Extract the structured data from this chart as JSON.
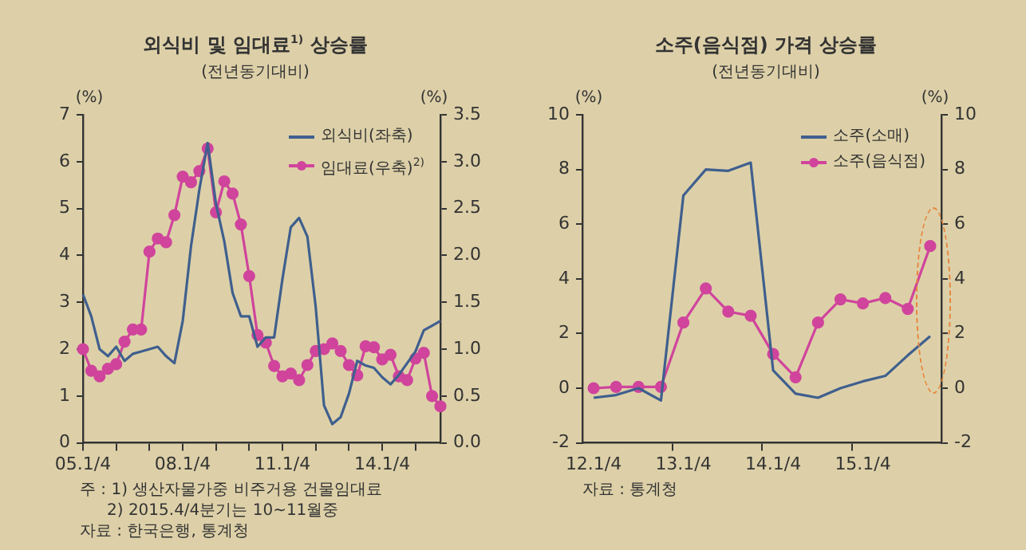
{
  "chart_data": [
    {
      "type": "line",
      "title": "외식비 및 임대료$^{1)}$ 상승률",
      "subtitle": "(전년동기대비)",
      "ylabel": "(%)",
      "y2label": "(%)",
      "categories": [
        "05.1/4",
        null,
        null,
        null,
        null,
        null,
        null,
        null,
        null,
        null,
        null,
        null,
        "08.1/4",
        null,
        null,
        null,
        null,
        null,
        null,
        null,
        null,
        null,
        null,
        null,
        "11.1/4",
        null,
        null,
        null,
        null,
        null,
        null,
        null,
        null,
        null,
        null,
        null,
        "14.1/4",
        null,
        null,
        null,
        null,
        null,
        null,
        null
      ],
      "series": [
        {
          "name": "외식비(좌축)",
          "color": "#3f5f8e",
          "marker": "none",
          "values": [
            3.17,
            2.7,
            2.0,
            1.85,
            2.05,
            1.75,
            1.9,
            1.95,
            2.0,
            2.05,
            1.85,
            1.7,
            2.6,
            4.2,
            5.4,
            6.4,
            5.1,
            4.3,
            3.2,
            2.7,
            2.7,
            2.05,
            2.25,
            2.25,
            3.5,
            4.6,
            4.8,
            4.4,
            2.9,
            0.8,
            0.4,
            0.55,
            1.05,
            1.75,
            1.65,
            1.6,
            1.4,
            1.25,
            1.45,
            1.7,
            1.95,
            2.4,
            2.5,
            2.6
          ]
        },
        {
          "name": "임대료(우축)$^{2)}$",
          "color": "#d0449c",
          "marker": "circle",
          "axis": "y2",
          "values": [
            1.0,
            0.77,
            0.71,
            0.79,
            0.84,
            1.08,
            1.21,
            1.21,
            2.04,
            2.18,
            2.14,
            2.43,
            2.84,
            2.78,
            2.9,
            3.14,
            2.46,
            2.79,
            2.66,
            2.33,
            1.78,
            1.15,
            1.07,
            0.82,
            0.71,
            0.74,
            0.67,
            0.83,
            0.98,
            1.0,
            1.06,
            0.98,
            0.83,
            0.72,
            1.03,
            1.02,
            0.89,
            0.94,
            0.71,
            0.67,
            0.9,
            0.96,
            0.5,
            0.39
          ]
        }
      ],
      "ylim": [
        0,
        7
      ],
      "yticks": [
        0,
        1,
        2,
        3,
        4,
        5,
        6,
        7
      ],
      "y2lim": [
        0,
        3.5
      ],
      "y2ticks": [
        {
          "value": 0,
          "label": "0.0"
        },
        {
          "value": 0.5,
          "label": "0.5"
        },
        {
          "value": 1,
          "label": "1.0"
        },
        {
          "value": 1.5,
          "label": "1.5"
        },
        {
          "value": 2,
          "label": "2.0"
        },
        {
          "value": 2.5,
          "label": "2.5"
        },
        {
          "value": 3,
          "label": "3.0"
        },
        {
          "value": 3.5,
          "label": "3.5"
        }
      ],
      "grid": false,
      "legend": "top right",
      "annotations": [
        "주 : 1) 생산자물가중 비주거용 건물임대료",
        "2) 2015.4/4분기는 10~11월중",
        "자료 : 한국은행, 통계청"
      ]
    },
    {
      "type": "line",
      "title": "소주(음식점) 가격 상승률",
      "subtitle": "(전년동기대비)",
      "ylabel": "(%)",
      "y2label": "(%)",
      "categories": [
        "12.1/4",
        null,
        null,
        null,
        "13.1/4",
        null,
        null,
        null,
        "14.1/4",
        null,
        null,
        null,
        "15.1/4",
        null,
        null,
        null
      ],
      "series": [
        {
          "name": "소주(소매)",
          "color": "#3f5f8e",
          "marker": "none",
          "values": [
            -0.35,
            -0.25,
            0.0,
            -0.45,
            7.05,
            8.0,
            7.95,
            8.25,
            0.65,
            -0.2,
            -0.35,
            0.0,
            0.25,
            0.45,
            1.2,
            1.9
          ]
        },
        {
          "name": "소주(음식점)",
          "color": "#d0449c",
          "marker": "circle",
          "values": [
            0.0,
            0.05,
            0.05,
            0.05,
            2.4,
            3.65,
            2.8,
            2.65,
            1.25,
            0.4,
            2.4,
            3.25,
            3.1,
            3.3,
            2.9,
            5.2
          ]
        }
      ],
      "ylim": [
        -2,
        10
      ],
      "yticks": [
        -2,
        0,
        2,
        4,
        6,
        8,
        10
      ],
      "y2lim": [
        -2,
        10
      ],
      "y2ticks": [
        -2,
        0,
        2,
        4,
        6,
        8,
        10
      ],
      "grid": false,
      "legend": "top right",
      "annotations": [
        "자료 : 통계청"
      ]
    }
  ]
}
